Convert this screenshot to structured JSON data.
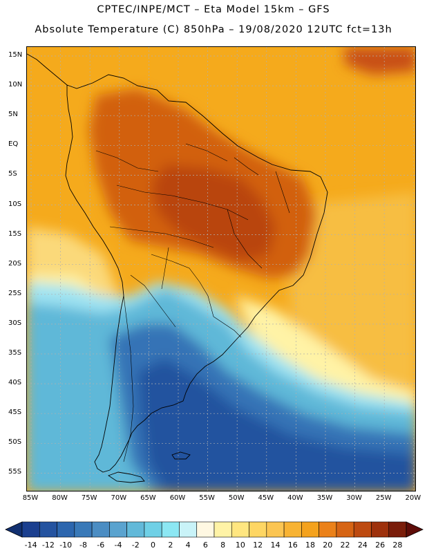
{
  "header": {
    "line1": "CPTEC/INPE/MCT –  Eta Model 15km – GFS",
    "line2": "Absolute Temperature (C) 850hPa – 19/08/2020 12UTC fct=13h"
  },
  "lat_labels": [
    "15N",
    "10N",
    "5N",
    "EQ",
    "5S",
    "10S",
    "15S",
    "20S",
    "25S",
    "30S",
    "35S",
    "40S",
    "45S",
    "50S",
    "55S"
  ],
  "lon_labels": [
    "85W",
    "80W",
    "75W",
    "70W",
    "65W",
    "60W",
    "55W",
    "50W",
    "45W",
    "40W",
    "35W",
    "30W",
    "25W",
    "20W"
  ],
  "colorbar": {
    "ticks": [
      "-14",
      "-12",
      "-10",
      "-8",
      "-6",
      "-4",
      "-2",
      "0",
      "2",
      "4",
      "6",
      "8",
      "10",
      "12",
      "14",
      "16",
      "18",
      "20",
      "22",
      "24",
      "26",
      "28"
    ],
    "colors": [
      "#1b3f8f",
      "#2453a0",
      "#2c66ae",
      "#3979b8",
      "#4b8dc3",
      "#5aa3cf",
      "#62b9d9",
      "#6fd0e6",
      "#8ce7f3",
      "#c9f3f8",
      "#fff8e2",
      "#fff3a6",
      "#ffe680",
      "#fed663",
      "#fbc552",
      "#f8b333",
      "#f4a21d",
      "#eb8119",
      "#d66414",
      "#bd4a10",
      "#9e310c",
      "#7a1d0a"
    ],
    "lower_arrow_color": "#123070",
    "upper_arrow_color": "#5e0c08"
  },
  "field_colors": {
    "ocean_warm": "#f5aa1c",
    "subtropical": "#f7be42",
    "mid": "#fbd97a",
    "cool": "#fff3a6",
    "cold_edge": "#9fe3f2",
    "cold": "#5fb8d8",
    "very_cold": "#3573b6",
    "deep_cold": "#24529f",
    "land_hot": "#d2600f",
    "land_hottest": "#b94410",
    "caribbean_hot": "#c84f12",
    "coast_line": "#000000",
    "grid_line": "#b0b0b0"
  }
}
